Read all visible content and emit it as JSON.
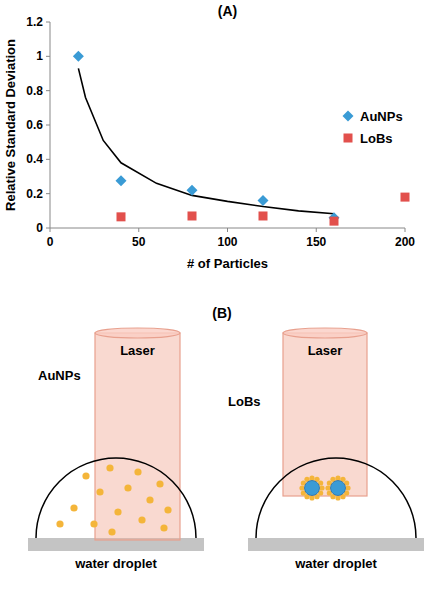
{
  "chart_data": {
    "type": "scatter",
    "title": "(A)",
    "x_label": "# of Particles",
    "y_label": "Relative Standard Deviation",
    "xlim": [
      0,
      200
    ],
    "xticks": [
      0,
      50,
      100,
      150,
      200
    ],
    "ylim": [
      0,
      1.2
    ],
    "yticks": [
      0,
      0.2,
      0.4,
      0.6,
      0.8,
      1,
      1.2
    ],
    "grid": false,
    "legend": "top-right",
    "series": [
      {
        "name": "AuNPs",
        "color": "#3a9bd5",
        "marker": "diamond",
        "x": [
          16,
          40,
          80,
          120,
          160
        ],
        "values": [
          1.0,
          0.275,
          0.22,
          0.16,
          0.06
        ]
      },
      {
        "name": "LoBs",
        "color": "#e2504c",
        "marker": "square",
        "x": [
          40,
          80,
          120,
          160,
          200
        ],
        "values": [
          0.065,
          0.07,
          0.07,
          0.04,
          0.18
        ]
      },
      {
        "type": "line",
        "color": "#000000",
        "marker": "none",
        "line_style": "solid",
        "x": [
          16,
          20,
          30,
          40,
          60,
          80,
          100,
          120,
          140,
          160
        ],
        "values": [
          0.93,
          0.76,
          0.51,
          0.38,
          0.26,
          0.19,
          0.155,
          0.125,
          0.1,
          0.083
        ]
      }
    ]
  },
  "diagram": {
    "title": "(B)",
    "panels": [
      {
        "laser": "Laser",
        "particles": "AuNPs",
        "droplet": "water droplet"
      },
      {
        "laser": "Laser",
        "particles": "LoBs",
        "droplet": "water droplet"
      }
    ]
  }
}
